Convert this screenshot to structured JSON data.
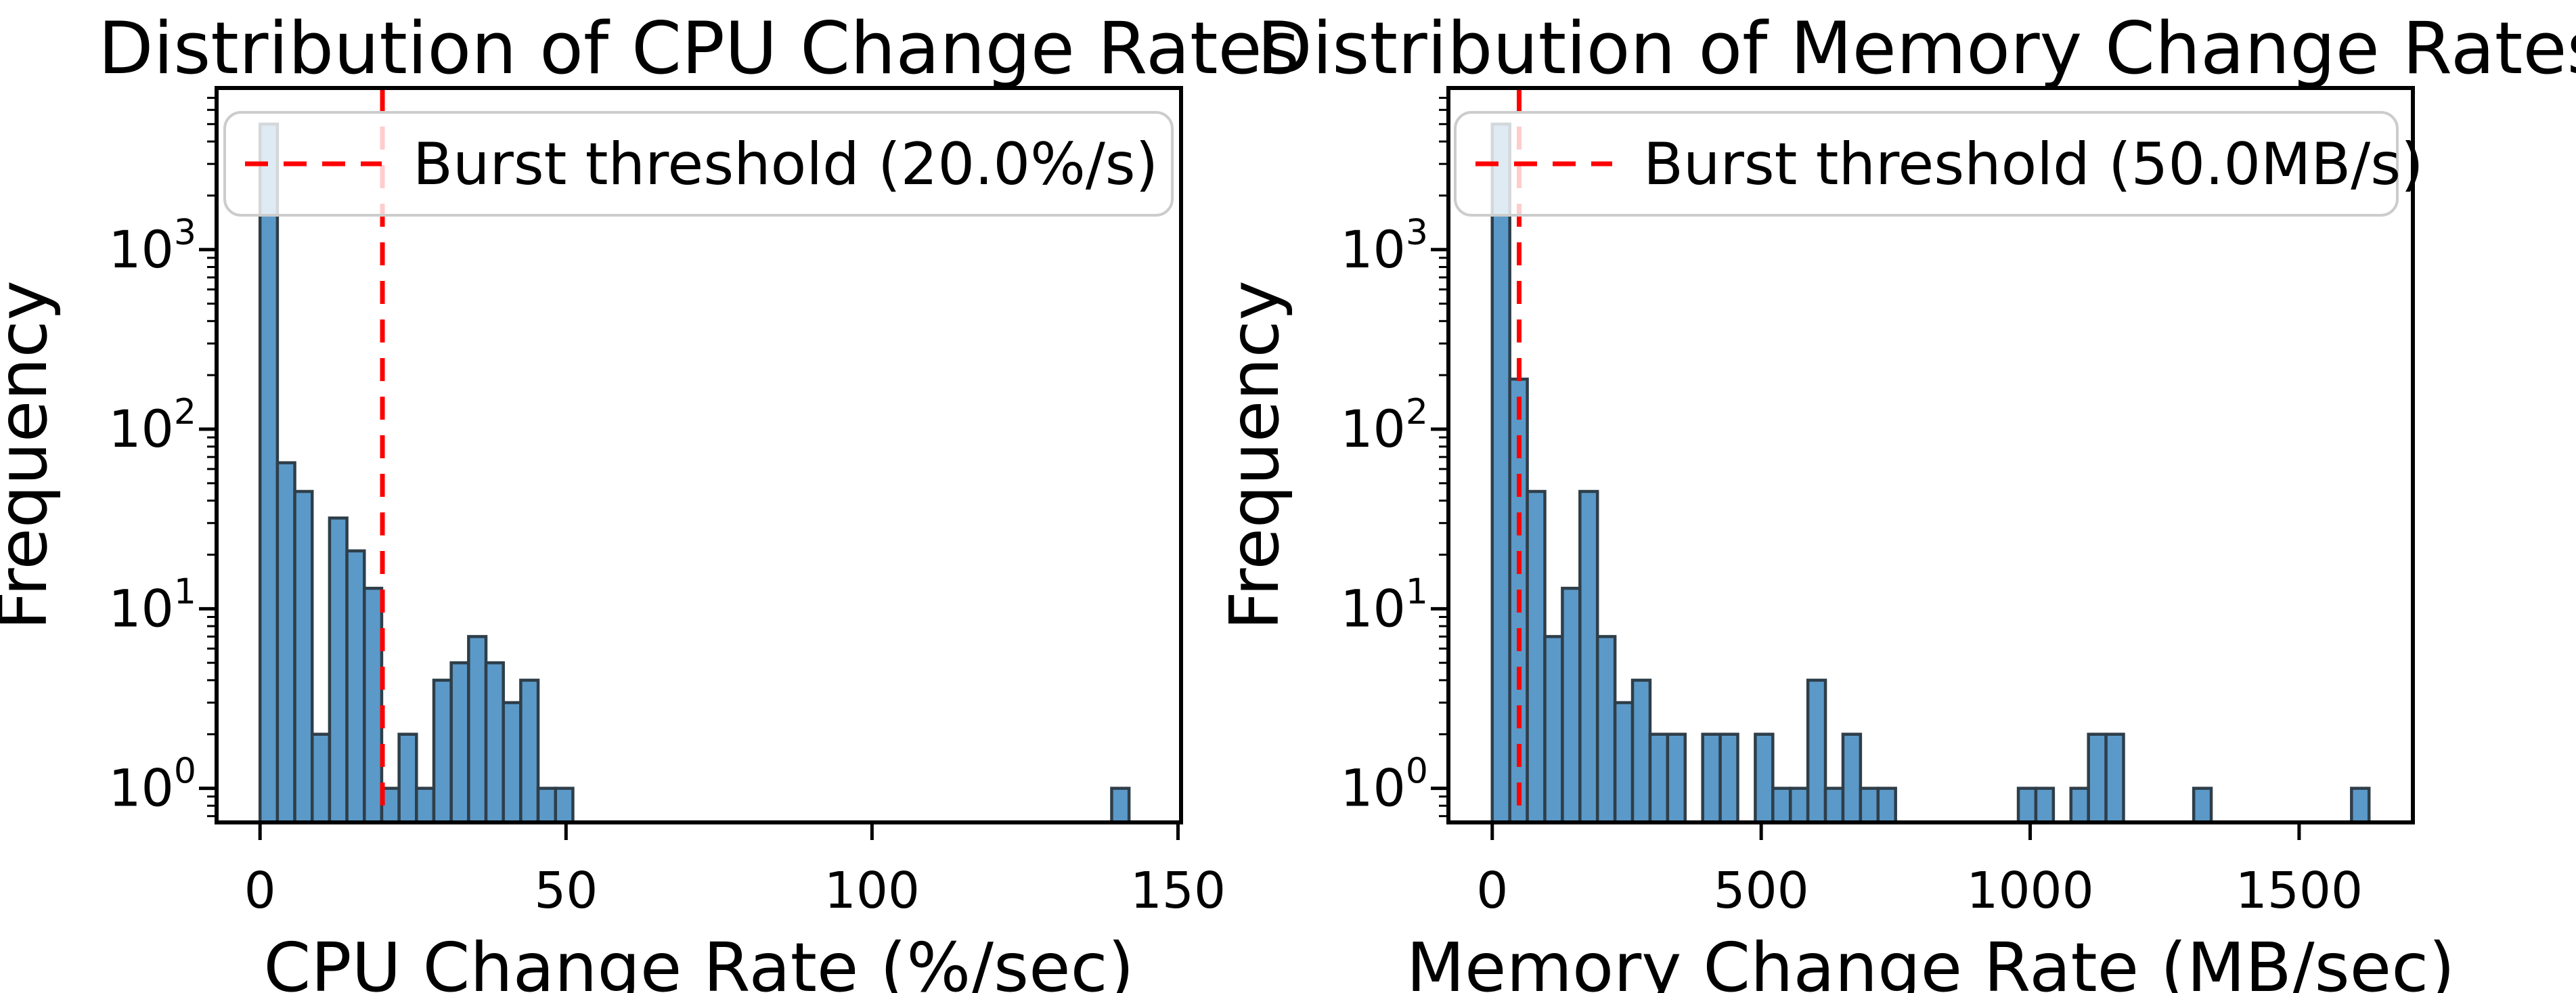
{
  "figure_background": "#ffffff",
  "chart_data": [
    {
      "type": "bar",
      "subtype": "histogram",
      "title": "Distribution of CPU Change Rates",
      "xlabel": "CPU Change Rate (%/sec)",
      "ylabel": "Frequency",
      "yscale": "log",
      "grid": false,
      "legend_position": "upper left",
      "legend_entries": [
        "Burst threshold (20.0%/s)"
      ],
      "threshold_line": {
        "x": 20.0,
        "style": "dashed",
        "color": "#ff0000"
      },
      "bins": {
        "start": 0,
        "width": 2.84,
        "count": 50
      },
      "values": [
        5000,
        65,
        45,
        2,
        32,
        21,
        13,
        1,
        2,
        1,
        4,
        5,
        7,
        5,
        3,
        4,
        1,
        1,
        0,
        0,
        0,
        0,
        0,
        0,
        0,
        0,
        0,
        0,
        0,
        0,
        0,
        0,
        0,
        0,
        0,
        0,
        0,
        0,
        0,
        0,
        0,
        0,
        0,
        0,
        0,
        0,
        0,
        0,
        0,
        1
      ],
      "x_ticks": [
        0,
        50,
        100,
        150
      ],
      "y_tick_exponents": [
        0,
        1,
        2,
        3
      ],
      "xlim": [
        -7.1,
        150.5
      ],
      "ylim_log10": [
        -0.19,
        3.9
      ]
    },
    {
      "type": "bar",
      "subtype": "histogram",
      "title": "Distribution of Memory Change Rates",
      "xlabel": "Memory Change Rate (MB/sec)",
      "ylabel": "Frequency",
      "yscale": "log",
      "grid": false,
      "legend_position": "upper left",
      "legend_entries": [
        "Burst threshold (50.0MB/s)"
      ],
      "threshold_line": {
        "x": 50.0,
        "style": "dashed",
        "color": "#ff0000"
      },
      "bins": {
        "start": 0,
        "width": 32.6,
        "count": 50
      },
      "values": [
        5000,
        190,
        45,
        7,
        13,
        45,
        7,
        3,
        4,
        2,
        2,
        0,
        2,
        2,
        0,
        2,
        1,
        1,
        4,
        1,
        2,
        1,
        1,
        0,
        0,
        0,
        0,
        0,
        0,
        0,
        1,
        1,
        0,
        1,
        2,
        2,
        0,
        0,
        0,
        0,
        1,
        0,
        0,
        0,
        0,
        0,
        0,
        0,
        0,
        1
      ],
      "x_ticks": [
        0,
        500,
        1000,
        1500
      ],
      "y_tick_exponents": [
        0,
        1,
        2,
        3
      ],
      "xlim": [
        -81.5,
        1711.5
      ],
      "ylim_log10": [
        -0.19,
        3.9
      ]
    }
  ],
  "colors": {
    "bar_fill": "#5b99c8",
    "bar_edge": "#2e3e49",
    "threshold": "#ff0000",
    "axis": "#000000",
    "text": "#000000",
    "legend_border": "#cccccc",
    "legend_background": "rgba(255,255,255,0.8)"
  }
}
